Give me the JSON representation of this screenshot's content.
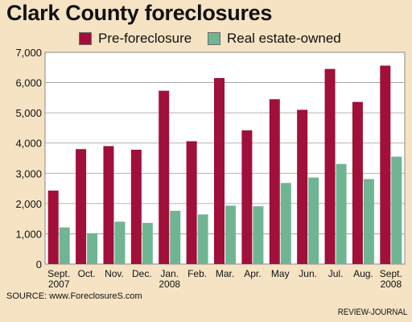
{
  "chart_data": {
    "type": "bar",
    "title": "Clark County foreclosures",
    "categories": [
      [
        "Sept.",
        "2007"
      ],
      [
        "Oct."
      ],
      [
        "Nov."
      ],
      [
        "Dec."
      ],
      [
        "Jan.",
        "2008"
      ],
      [
        "Feb."
      ],
      [
        "Mar."
      ],
      [
        "Apr."
      ],
      [
        "May"
      ],
      [
        "Jun."
      ],
      [
        "Jul."
      ],
      [
        "Aug."
      ],
      [
        "Sept.",
        "2008"
      ]
    ],
    "series": [
      {
        "name": "Pre-foreclosure",
        "color": "#a0103a",
        "values": [
          2430,
          3800,
          3900,
          3780,
          5730,
          4060,
          6150,
          4420,
          5450,
          5100,
          6450,
          5360,
          6560
        ]
      },
      {
        "name": "Real estate-owned",
        "color": "#6fb592",
        "values": [
          1210,
          1020,
          1400,
          1360,
          1760,
          1640,
          1930,
          1910,
          2680,
          2860,
          3310,
          2810,
          3550
        ]
      }
    ],
    "yticks": [
      "0",
      "1,000",
      "2,000",
      "3,000",
      "4,000",
      "5,000",
      "6,000",
      "7,000"
    ],
    "ylim": [
      0,
      7000
    ],
    "legend_position": "top",
    "grid": true,
    "xlabel": "",
    "ylabel": ""
  },
  "footer": {
    "source": "SOURCE: www.ForeclosureS.com",
    "credit": "REVIEW-JOURNAL"
  }
}
